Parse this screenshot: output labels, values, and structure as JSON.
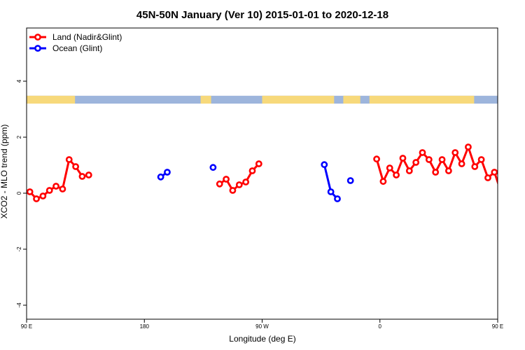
{
  "chart_data": {
    "type": "line",
    "title": "45N-50N January (Ver 10)   2015-01-01 to 2020-12-18",
    "xlabel": "Longitude (deg E)",
    "ylabel": "XCO2 - MLO trend (ppm)",
    "xlim": [
      90,
      450
    ],
    "ylim": [
      -4.5,
      5.9
    ],
    "x_ticks": [
      {
        "value": 90,
        "label": "90 E"
      },
      {
        "value": 180,
        "label": "180"
      },
      {
        "value": 270,
        "label": "90 W"
      },
      {
        "value": 360,
        "label": "0"
      },
      {
        "value": 450,
        "label": "90 E"
      },
      {
        "value": 540,
        "label": "180"
      }
    ],
    "y_ticks": [
      {
        "value": -4,
        "label": "-4"
      },
      {
        "value": -2,
        "label": "-2"
      },
      {
        "value": 0,
        "label": "0"
      },
      {
        "value": 2,
        "label": "2"
      },
      {
        "value": 4,
        "label": "4"
      }
    ],
    "legend_position": "top-left",
    "land_band_y": [
      3.2,
      3.48
    ],
    "colors": {
      "land": "#ff0000",
      "ocean": "#0000ff",
      "band_land": "#f7d97b",
      "band_ocean": "#9db5dc"
    },
    "series": [
      {
        "name": "Land (Nadir&Glint)",
        "color": "#ff0000",
        "segments": [
          [
            [
              92.5,
              0.05
            ],
            [
              97.5,
              -0.2
            ],
            [
              102.5,
              -0.1
            ],
            [
              107.5,
              0.1
            ],
            [
              112.5,
              0.25
            ],
            [
              117.5,
              0.15
            ],
            [
              122.5,
              1.2
            ],
            [
              127.5,
              0.95
            ],
            [
              132.5,
              0.6
            ],
            [
              137.5,
              0.65
            ]
          ],
          [
            [
              237.5,
              0.33
            ],
            [
              242.5,
              0.5
            ],
            [
              247.5,
              0.1
            ],
            [
              252.5,
              0.3
            ],
            [
              257.5,
              0.4
            ],
            [
              262.5,
              0.8
            ],
            [
              267.5,
              1.05
            ]
          ],
          [
            [
              357.5,
              1.22
            ],
            [
              362.5,
              0.42
            ],
            [
              367.5,
              0.9
            ],
            [
              372.5,
              0.65
            ],
            [
              377.5,
              1.25
            ],
            [
              382.5,
              0.8
            ],
            [
              387.5,
              1.1
            ],
            [
              392.5,
              1.45
            ],
            [
              397.5,
              1.2
            ],
            [
              402.5,
              0.75
            ],
            [
              407.5,
              1.2
            ],
            [
              412.5,
              0.8
            ],
            [
              417.5,
              1.45
            ],
            [
              422.5,
              1.05
            ],
            [
              427.5,
              1.65
            ],
            [
              432.5,
              0.95
            ],
            [
              437.5,
              1.2
            ],
            [
              442.5,
              0.55
            ],
            [
              447.5,
              0.75
            ],
            [
              452.5,
              0.05
            ],
            [
              457.5,
              -0.2
            ],
            [
              462.5,
              -0.1
            ],
            [
              467.5,
              0.1
            ],
            [
              472.5,
              0.25
            ],
            [
              477.5,
              0.15
            ],
            [
              482.5,
              1.2
            ],
            [
              487.5,
              0.95
            ],
            [
              492.5,
              0.6
            ],
            [
              497.5,
              0.65
            ]
          ]
        ]
      },
      {
        "name": "Ocean (Glint)",
        "color": "#0000ff",
        "segments": [
          [
            [
              192.5,
              0.58
            ],
            [
              197.5,
              0.75
            ]
          ],
          [
            [
              232.5,
              0.92
            ]
          ],
          [
            [
              317.5,
              1.02
            ],
            [
              322.5,
              0.05
            ],
            [
              327.5,
              -0.2
            ]
          ],
          [
            [
              337.5,
              0.45
            ]
          ]
        ]
      }
    ]
  }
}
